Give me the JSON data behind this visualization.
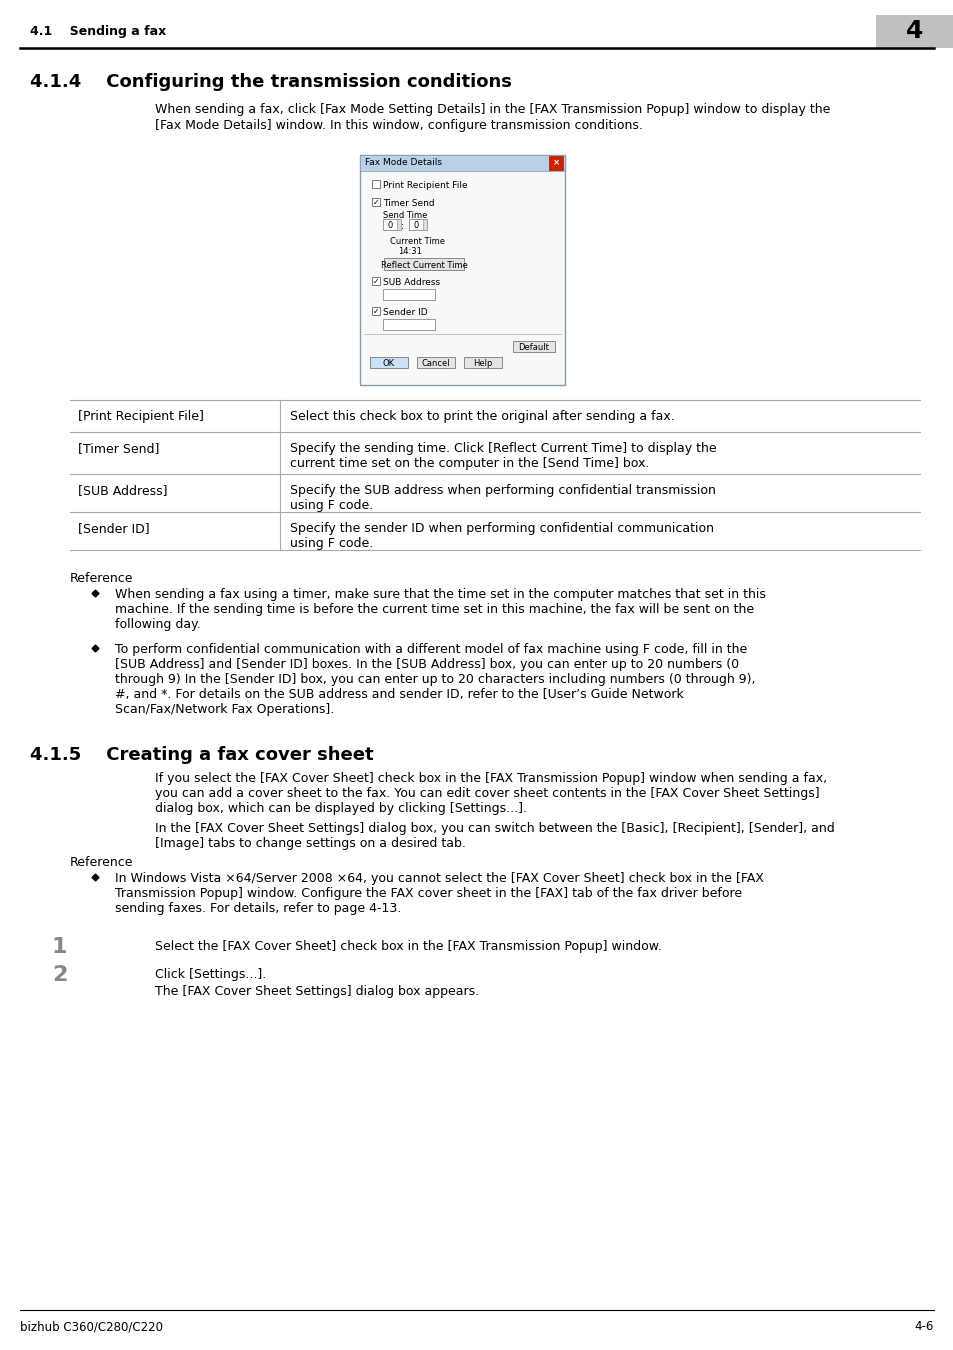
{
  "header_section": "4.1    Sending a fax",
  "chapter_num": "4",
  "section_title": "4.1.4    Configuring the transmission conditions",
  "section_body_l1": "When sending a fax, click [Fax Mode Setting Details] in the [FAX Transmission Popup] window to display the",
  "section_body_l2": "[Fax Mode Details] window. In this window, configure transmission conditions.",
  "table_rows": [
    {
      "label": "[Print Recipient File]",
      "desc": "Select this check box to print the original after sending a fax.",
      "desc2": ""
    },
    {
      "label": "[Timer Send]",
      "desc": "Specify the sending time. Click [Reflect Current Time] to display the",
      "desc2": "current time set on the computer in the [Send Time] box."
    },
    {
      "label": "[SUB Address]",
      "desc": "Specify the SUB address when performing confidential transmission",
      "desc2": "using F code."
    },
    {
      "label": "[Sender ID]",
      "desc": "Specify the sender ID when performing confidential communication",
      "desc2": "using F code."
    }
  ],
  "reference_label": "Reference",
  "bullet1_lines": [
    "When sending a fax using a timer, make sure that the time set in the computer matches that set in this",
    "machine. If the sending time is before the current time set in this machine, the fax will be sent on the",
    "following day."
  ],
  "bullet2_lines": [
    "To perform confidential communication with a different model of fax machine using F code, fill in the",
    "[SUB Address] and [Sender ID] boxes. In the [SUB Address] box, you can enter up to 20 numbers (0",
    "through 9) In the [Sender ID] box, you can enter up to 20 characters including numbers (0 through 9),",
    "#, and *. For details on the SUB address and sender ID, refer to the [User’s Guide Network",
    "Scan/Fax/Network Fax Operations]."
  ],
  "section2_title": "4.1.5    Creating a fax cover sheet",
  "s2_body1_l1": "If you select the [FAX Cover Sheet] check box in the [FAX Transmission Popup] window when sending a fax,",
  "s2_body1_l2": "you can add a cover sheet to the fax. You can edit cover sheet contents in the [FAX Cover Sheet Settings]",
  "s2_body1_l3": "dialog box, which can be displayed by clicking [Settings...].",
  "s2_body2_l1": "In the [FAX Cover Sheet Settings] dialog box, you can switch between the [Basic], [Recipient], [Sender], and",
  "s2_body2_l2": "[Image] tabs to change settings on a desired tab.",
  "reference_label2": "Reference",
  "bullet3_lines": [
    "In Windows Vista ×64/Server 2008 ×64, you cannot select the [FAX Cover Sheet] check box in the [FAX",
    "Transmission Popup] window. Configure the FAX cover sheet in the [FAX] tab of the fax driver before",
    "sending faxes. For details, refer to page 4-13."
  ],
  "step1_num": "1",
  "step1_text": "Select the [FAX Cover Sheet] check box in the [FAX Transmission Popup] window.",
  "step2_num": "2",
  "step2_text": "Click [Settings...].",
  "step2_sub": "The [FAX Cover Sheet Settings] dialog box appears.",
  "footer_left": "bizhub C360/C280/C220",
  "footer_right": "4-6",
  "bg_color": "#ffffff",
  "header_bg": "#c0c0c0",
  "table_border": "#aaaaaa",
  "light_blue_title": "#b8d0e8",
  "dialog_bg": "#f0f4f8",
  "button_bg": "#e4e4e4",
  "ok_btn_bg": "#cce0f8"
}
